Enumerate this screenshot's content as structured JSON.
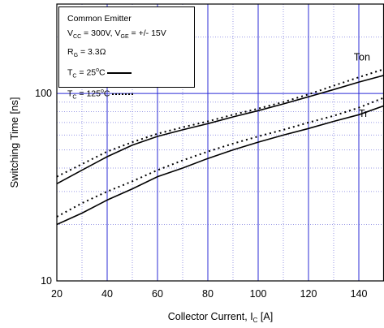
{
  "chart_data": {
    "type": "line",
    "ylabel": "Switching Time [ns]",
    "xlabel_main": "Collector Current, I",
    "xlabel_sub": "C",
    "xlabel_unit": " [A]",
    "x_scale": "linear",
    "y_scale": "log",
    "xlim": [
      20,
      150
    ],
    "ylim": [
      10,
      300
    ],
    "x_ticks": [
      "20",
      "40",
      "60",
      "80",
      "100",
      "120",
      "140"
    ],
    "y_ticks": [
      "10",
      "100"
    ],
    "grid": true,
    "legend_placement": "top-left",
    "legend": {
      "line1": "Common Emitter",
      "vcc_pre": "V",
      "vcc_sub": "CC",
      "vcc_mid": " = 300V, V",
      "vge_sub": "GE",
      "vge_post": " = +/- 15V",
      "rg_pre": "R",
      "rg_sub": "G",
      "rg_post": " = 3.3Ω",
      "tc_pre": "T",
      "tc_sub": "C",
      "tc25_val": " = 25",
      "deg": "o",
      "tc25_unit": "C",
      "tc125_val": " = 125",
      "tc125_unit": "C"
    },
    "curve_labels": [
      {
        "text": "Ton",
        "x": 138,
        "y": 150
      },
      {
        "text": "Tr",
        "x": 140,
        "y": 75
      }
    ],
    "series": [
      {
        "name": "Ton",
        "temp": "25C",
        "style": "solid",
        "x": [
          20,
          30,
          40,
          50,
          60,
          70,
          80,
          90,
          100,
          110,
          120,
          130,
          140,
          150
        ],
        "y": [
          33,
          39,
          46,
          53,
          59,
          64,
          69,
          75,
          81,
          88,
          96,
          105,
          115,
          125
        ]
      },
      {
        "name": "Ton",
        "temp": "125C",
        "style": "dotted",
        "x": [
          20,
          30,
          40,
          50,
          60,
          70,
          80,
          90,
          100,
          110,
          120,
          130,
          140,
          150
        ],
        "y": [
          36,
          42,
          49,
          55,
          61,
          66,
          71,
          77,
          83,
          90,
          99,
          110,
          122,
          135
        ]
      },
      {
        "name": "Tr",
        "temp": "25C",
        "style": "solid",
        "x": [
          20,
          30,
          40,
          50,
          60,
          70,
          80,
          90,
          100,
          110,
          120,
          130,
          140,
          150
        ],
        "y": [
          20,
          23,
          27,
          31,
          36,
          40,
          45,
          50,
          55,
          60,
          65,
          71,
          77,
          86
        ]
      },
      {
        "name": "Tr",
        "temp": "125C",
        "style": "dotted",
        "x": [
          20,
          30,
          40,
          50,
          60,
          70,
          80,
          90,
          100,
          110,
          120,
          130,
          140,
          150
        ],
        "y": [
          22,
          26,
          30,
          34,
          39,
          44,
          49,
          54,
          59,
          64,
          70,
          76,
          84,
          95
        ]
      }
    ],
    "colors": {
      "major_grid": "#2b2bd6",
      "minor_grid": "#9a9ae6",
      "curve": "#000000"
    }
  }
}
